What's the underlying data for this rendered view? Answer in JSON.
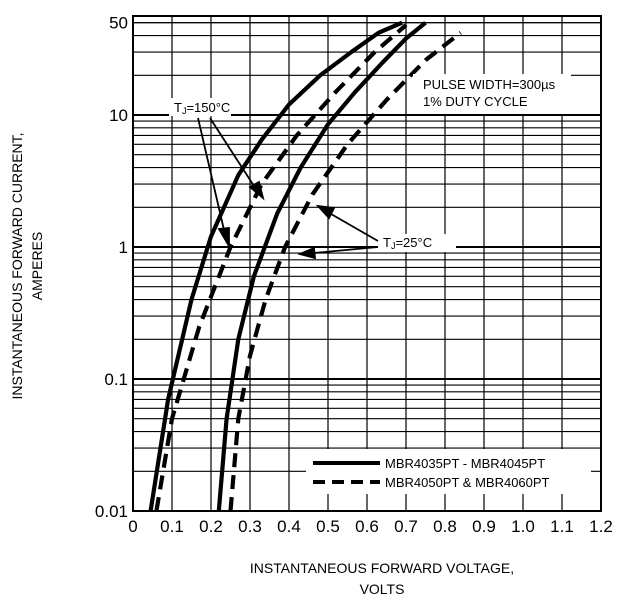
{
  "chart_data": {
    "type": "line",
    "x_scale": "linear",
    "y_scale": "log",
    "xlim": [
      0,
      1.2
    ],
    "ylim": [
      0.01,
      50
    ],
    "x_ticks": [
      "0",
      "0.1",
      "0.2",
      "0.3",
      "0.4",
      "0.5",
      "0.6",
      "0.7",
      "0.8",
      "0.9",
      "1.0",
      "1.1",
      "1.2"
    ],
    "y_ticks": [
      {
        "value": 0.01,
        "label": "0.01"
      },
      {
        "value": 0.1,
        "label": "0.1"
      },
      {
        "value": 1,
        "label": "1"
      },
      {
        "value": 10,
        "label": "10"
      },
      {
        "value": 50,
        "label": "50"
      }
    ],
    "xlabel": [
      "INSTANTANEOUS FORWARD VOLTAGE,",
      "VOLTS"
    ],
    "ylabel": [
      "INSTANTANEOUS FORWARD CURRENT,",
      "AMPERES"
    ],
    "grid": true,
    "annotations": {
      "pulse": [
        "PULSE WIDTH=300µs",
        "1% DUTY CYCLE"
      ],
      "tj150": {
        "main": "T",
        "sub": "J",
        "rest": "=150°C"
      },
      "tj25": {
        "main": "T",
        "sub": "J",
        "rest": "=25°C"
      }
    },
    "legend": {
      "position": "bottom-right",
      "entries": [
        {
          "label": "MBR4035PT - MBR4045PT",
          "style": "solid"
        },
        {
          "label": "MBR4050PT & MBR4060PT",
          "style": "dashed"
        }
      ]
    },
    "series": [
      {
        "group": "MBR4035PT - MBR4045PT",
        "condition": "TJ=150°C",
        "style": "solid",
        "x": [
          0.045,
          0.09,
          0.15,
          0.2,
          0.27,
          0.33,
          0.4,
          0.48,
          0.56,
          0.63,
          0.69
        ],
        "y": [
          0.01,
          0.07,
          0.4,
          1.2,
          3.5,
          6.5,
          12,
          20,
          30,
          42,
          50
        ]
      },
      {
        "group": "MBR4035PT - MBR4045PT",
        "condition": "TJ=25°C",
        "style": "solid",
        "x": [
          0.22,
          0.24,
          0.27,
          0.31,
          0.37,
          0.43,
          0.5,
          0.57,
          0.64,
          0.7,
          0.75
        ],
        "y": [
          0.01,
          0.05,
          0.2,
          0.6,
          1.8,
          4,
          8.5,
          15,
          25,
          38,
          50
        ]
      },
      {
        "group": "MBR4050PT & MBR4060PT",
        "condition": "TJ=150°C",
        "style": "dashed",
        "x": [
          0.06,
          0.1,
          0.17,
          0.25,
          0.33,
          0.42,
          0.52,
          0.62,
          0.7
        ],
        "y": [
          0.01,
          0.05,
          0.25,
          1.0,
          3.0,
          7,
          15,
          30,
          48
        ]
      },
      {
        "group": "MBR4050PT & MBR4060PT",
        "condition": "TJ=25°C",
        "style": "dashed",
        "x": [
          0.25,
          0.27,
          0.3,
          0.34,
          0.39,
          0.46,
          0.55,
          0.65,
          0.75,
          0.84
        ],
        "y": [
          0.01,
          0.05,
          0.15,
          0.4,
          1.0,
          2.5,
          6,
          13,
          26,
          42
        ]
      }
    ]
  }
}
